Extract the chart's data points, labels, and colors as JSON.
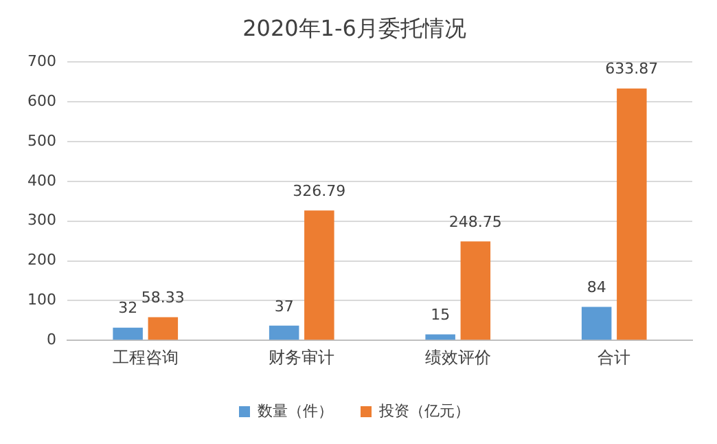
{
  "chart_data": {
    "type": "bar",
    "title": "2020年1-6月委托情况",
    "categories": [
      "工程咨询",
      "财务审计",
      "绩效评价",
      "合计"
    ],
    "series": [
      {
        "name": "数量（件）",
        "color": "#5b9bd5",
        "values": [
          32,
          37,
          15,
          84
        ]
      },
      {
        "name": "投资（亿元）",
        "color": "#ed7d31",
        "values": [
          58.33,
          326.79,
          248.75,
          633.87
        ]
      }
    ],
    "ylim": [
      0,
      700
    ],
    "yticks": [
      0,
      100,
      200,
      300,
      400,
      500,
      600,
      700
    ],
    "grid": "y",
    "legend": "bottom",
    "data_labels": true
  }
}
